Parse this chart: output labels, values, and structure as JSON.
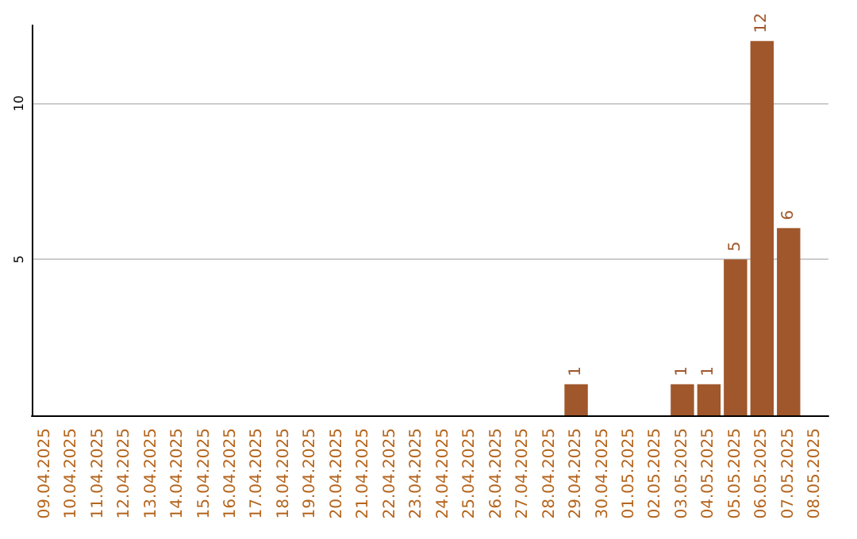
{
  "chart_data": {
    "type": "bar",
    "categories": [
      "09.04.2025",
      "10.04.2025",
      "11.04.2025",
      "12.04.2025",
      "13.04.2025",
      "14.04.2025",
      "15.04.2025",
      "16.04.2025",
      "17.04.2025",
      "18.04.2025",
      "19.04.2025",
      "20.04.2025",
      "21.04.2025",
      "22.04.2025",
      "23.04.2025",
      "24.04.2025",
      "25.04.2025",
      "26.04.2025",
      "27.04.2025",
      "28.04.2025",
      "29.04.2025",
      "30.04.2025",
      "01.05.2025",
      "02.05.2025",
      "03.05.2025",
      "04.05.2025",
      "05.05.2025",
      "06.05.2025",
      "07.05.2025",
      "08.05.2025"
    ],
    "values": [
      0,
      0,
      0,
      0,
      0,
      0,
      0,
      0,
      0,
      0,
      0,
      0,
      0,
      0,
      0,
      0,
      0,
      0,
      0,
      0,
      1,
      0,
      0,
      0,
      1,
      1,
      5,
      12,
      6,
      0
    ],
    "value_labels": [
      null,
      null,
      null,
      null,
      null,
      null,
      null,
      null,
      null,
      null,
      null,
      null,
      null,
      null,
      null,
      null,
      null,
      null,
      null,
      null,
      "1",
      null,
      null,
      null,
      "1",
      "1",
      "5",
      "12",
      "6",
      null
    ],
    "color": "#a0572b",
    "ylim": [
      0,
      12.5
    ],
    "yticks": [
      5,
      10
    ],
    "grid": "y"
  }
}
